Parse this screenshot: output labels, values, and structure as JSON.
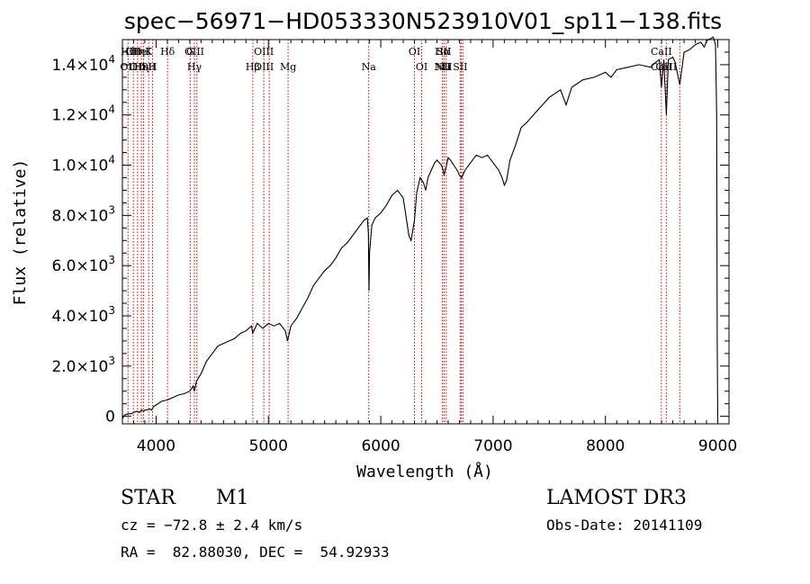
{
  "chart_data": {
    "type": "line",
    "title": "spec−56971−HD053330N523910V01_sp11−138.fits",
    "xlabel": "Wavelength (Å)",
    "ylabel": "Flux (relative)",
    "xlim": [
      3700,
      9100
    ],
    "ylim": [
      -300,
      15000
    ],
    "x_ticks": [
      4000,
      5000,
      6000,
      7000,
      8000,
      9000
    ],
    "x_tick_labels": [
      "4000",
      "5000",
      "6000",
      "7000",
      "8000",
      "9000"
    ],
    "y_ticks": [
      0,
      2000,
      4000,
      6000,
      8000,
      10000,
      12000,
      14000
    ],
    "y_tick_labels": [
      {
        "base": "0",
        "exp": ""
      },
      {
        "base": "2.0×10",
        "exp": "3"
      },
      {
        "base": "4.0×10",
        "exp": "3"
      },
      {
        "base": "6.0×10",
        "exp": "3"
      },
      {
        "base": "8.0×10",
        "exp": "3"
      },
      {
        "base": "1.0×10",
        "exp": "4"
      },
      {
        "base": "1.2×10",
        "exp": "4"
      },
      {
        "base": "1.4×10",
        "exp": "4"
      }
    ],
    "line_color": "#000000",
    "marker_color": "#cc0000",
    "spectrum": {
      "x": [
        3700,
        3720,
        3750,
        3780,
        3800,
        3830,
        3850,
        3870,
        3890,
        3900,
        3920,
        3940,
        3960,
        3980,
        4000,
        4050,
        4100,
        4150,
        4200,
        4250,
        4300,
        4330,
        4340,
        4360,
        4400,
        4450,
        4500,
        4550,
        4600,
        4650,
        4700,
        4750,
        4800,
        4850,
        4860,
        4900,
        4950,
        5000,
        5050,
        5100,
        5150,
        5170,
        5200,
        5250,
        5300,
        5350,
        5400,
        5450,
        5500,
        5550,
        5600,
        5650,
        5700,
        5750,
        5800,
        5850,
        5880,
        5890,
        5895,
        5900,
        5920,
        5950,
        6000,
        6050,
        6100,
        6150,
        6200,
        6250,
        6270,
        6300,
        6320,
        6350,
        6380,
        6400,
        6420,
        6450,
        6480,
        6500,
        6540,
        6560,
        6563,
        6580,
        6600,
        6620,
        6650,
        6680,
        6700,
        6720,
        6750,
        6800,
        6850,
        6900,
        6950,
        7000,
        7050,
        7080,
        7100,
        7120,
        7150,
        7200,
        7250,
        7300,
        7400,
        7500,
        7600,
        7650,
        7700,
        7800,
        7900,
        8000,
        8050,
        8100,
        8200,
        8300,
        8400,
        8450,
        8480,
        8498,
        8520,
        8542,
        8560,
        8600,
        8620,
        8662,
        8700,
        8750,
        8800,
        8850,
        8880,
        8900,
        8920,
        8960,
        8980,
        8990,
        8995,
        9000
      ],
      "y": [
        -100,
        50,
        100,
        100,
        150,
        200,
        150,
        250,
        200,
        250,
        250,
        300,
        250,
        400,
        450,
        600,
        650,
        750,
        850,
        900,
        1000,
        1200,
        1000,
        1400,
        1700,
        2200,
        2500,
        2800,
        2900,
        3000,
        3100,
        3300,
        3400,
        3600,
        3300,
        3700,
        3500,
        3700,
        3600,
        3700,
        3400,
        3000,
        3600,
        3900,
        4300,
        4700,
        5200,
        5500,
        5800,
        6000,
        6300,
        6700,
        6900,
        7200,
        7500,
        7800,
        7900,
        7300,
        5000,
        6500,
        7600,
        7900,
        8100,
        8400,
        8800,
        9000,
        8700,
        7200,
        7000,
        7800,
        8900,
        9500,
        9300,
        9000,
        9500,
        9800,
        10100,
        10200,
        10000,
        9700,
        9600,
        9900,
        10300,
        10200,
        10000,
        9800,
        9600,
        9500,
        9800,
        10100,
        10400,
        10300,
        10400,
        10100,
        9800,
        9500,
        9200,
        9400,
        10200,
        10800,
        11500,
        11700,
        12200,
        12700,
        13000,
        12400,
        13100,
        13400,
        13500,
        13700,
        13500,
        13800,
        13900,
        14000,
        13900,
        14100,
        14200,
        13100,
        14200,
        12000,
        14200,
        14300,
        14100,
        13200,
        14500,
        14600,
        14800,
        14900,
        14700,
        14950,
        15000,
        15100,
        14800,
        12000,
        3000,
        0
      ]
    },
    "line_markers": [
      {
        "x": 3750,
        "upper": "Hθ",
        "lower": "OII"
      },
      {
        "x": 3798,
        "upper": "OII",
        "lower": ""
      },
      {
        "x": 3835,
        "upper": "Hη",
        "lower": "OII"
      },
      {
        "x": 3869,
        "upper": "HeI",
        "lower": "Hη"
      },
      {
        "x": 3889,
        "upper": "",
        "lower": ""
      },
      {
        "x": 3934,
        "upper": "K",
        "lower": "SII"
      },
      {
        "x": 3969,
        "upper": "",
        "lower": "H"
      },
      {
        "x": 4102,
        "upper": "Hδ",
        "lower": ""
      },
      {
        "x": 4304,
        "upper": "G",
        "lower": ""
      },
      {
        "x": 4341,
        "upper": "OIII",
        "lower": "Hγ"
      },
      {
        "x": 4363,
        "upper": "",
        "lower": ""
      },
      {
        "x": 4861,
        "upper": "",
        "lower": "Hβ"
      },
      {
        "x": 4959,
        "upper": "OIII",
        "lower": "OIII"
      },
      {
        "x": 5007,
        "upper": "",
        "lower": ""
      },
      {
        "x": 5175,
        "upper": "",
        "lower": "Mg"
      },
      {
        "x": 5893,
        "upper": "",
        "lower": "Na"
      },
      {
        "x": 6300,
        "upper": "OI",
        "lower": ""
      },
      {
        "x": 6364,
        "upper": "",
        "lower": "OI"
      },
      {
        "x": 6548,
        "upper": "Hα",
        "lower": "NII"
      },
      {
        "x": 6563,
        "upper": "SII",
        "lower": "NII"
      },
      {
        "x": 6583,
        "upper": "",
        "lower": "Li"
      },
      {
        "x": 6707,
        "upper": "",
        "lower": "SII"
      },
      {
        "x": 6717,
        "upper": "",
        "lower": ""
      },
      {
        "x": 6731,
        "upper": "",
        "lower": ""
      },
      {
        "x": 8498,
        "upper": "CaII",
        "lower": "CaII"
      },
      {
        "x": 8542,
        "upper": "",
        "lower": "CaII"
      },
      {
        "x": 8662,
        "upper": "",
        "lower": ""
      }
    ]
  },
  "info": {
    "object_class": "STAR",
    "subclass": "M1",
    "survey": "LAMOST DR3",
    "redshift": "cz = −72.8 ± 2.4 km/s",
    "obs_date": "Obs-Date: 20141109",
    "coords": "RA =  82.88030, DEC =  54.92933"
  }
}
